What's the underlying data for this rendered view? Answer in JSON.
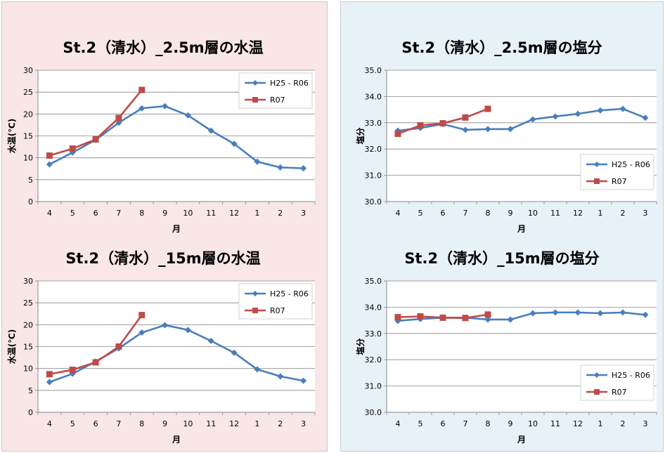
{
  "colors": {
    "series_a": "#4a7ebb",
    "series_b": "#be4b48",
    "panel_left_bg": "#f9e6e6",
    "panel_right_bg": "#e7f1f8"
  },
  "chart_data": [
    {
      "type": "line",
      "title": "St.2（清水）_2.5m層の水温",
      "xlabel": "月",
      "ylabel": "水温(℃)",
      "categories": [
        "4",
        "5",
        "6",
        "7",
        "8",
        "9",
        "10",
        "11",
        "12",
        "1",
        "2",
        "3"
      ],
      "ylim": [
        0,
        30
      ],
      "yticks": [
        "0",
        "5",
        "10",
        "15",
        "20",
        "25",
        "30"
      ],
      "grid": true,
      "legend": "top-right",
      "series": [
        {
          "name": "H25 - R06",
          "values": [
            8.5,
            11.2,
            14.1,
            18.0,
            21.3,
            21.8,
            19.7,
            16.2,
            13.2,
            9.1,
            7.8,
            7.6
          ]
        },
        {
          "name": "R07",
          "values": [
            10.5,
            12.1,
            14.2,
            19.1,
            25.5,
            null,
            null,
            null,
            null,
            null,
            null,
            null
          ]
        }
      ]
    },
    {
      "type": "line",
      "title": "St.2（清水）_2.5m層の塩分",
      "xlabel": "月",
      "ylabel": "塩分",
      "categories": [
        "4",
        "5",
        "6",
        "7",
        "8",
        "9",
        "10",
        "11",
        "12",
        "1",
        "2",
        "3"
      ],
      "ylim": [
        30.0,
        35.0
      ],
      "yticks": [
        "30.0",
        "31.0",
        "32.0",
        "33.0",
        "34.0",
        "35.0"
      ],
      "grid": true,
      "legend": "middle-right",
      "series": [
        {
          "name": "H25 - R06",
          "values": [
            32.7,
            32.8,
            32.95,
            32.73,
            32.76,
            32.76,
            33.13,
            33.24,
            33.34,
            33.47,
            33.53,
            33.19
          ]
        },
        {
          "name": "R07",
          "values": [
            32.58,
            32.9,
            32.98,
            33.2,
            33.53,
            null,
            null,
            null,
            null,
            null,
            null,
            null
          ]
        }
      ]
    },
    {
      "type": "line",
      "title": "St.2（清水）_15m層の水温",
      "xlabel": "月",
      "ylabel": "水温(℃)",
      "categories": [
        "4",
        "5",
        "6",
        "7",
        "8",
        "9",
        "10",
        "11",
        "12",
        "1",
        "2",
        "3"
      ],
      "ylim": [
        0,
        30
      ],
      "yticks": [
        "0",
        "5",
        "10",
        "15",
        "20",
        "25",
        "30"
      ],
      "grid": true,
      "legend": "top-right",
      "series": [
        {
          "name": "H25 - R06",
          "values": [
            6.9,
            8.8,
            11.6,
            14.6,
            18.2,
            19.9,
            18.8,
            16.3,
            13.6,
            9.8,
            8.2,
            7.2
          ]
        },
        {
          "name": "R07",
          "values": [
            8.7,
            9.7,
            11.4,
            15.0,
            22.2,
            null,
            null,
            null,
            null,
            null,
            null,
            null
          ]
        }
      ]
    },
    {
      "type": "line",
      "title": "St.2（清水）_15m層の塩分",
      "xlabel": "月",
      "ylabel": "塩分",
      "categories": [
        "4",
        "5",
        "6",
        "7",
        "8",
        "9",
        "10",
        "11",
        "12",
        "1",
        "2",
        "3"
      ],
      "ylim": [
        30.0,
        35.0
      ],
      "yticks": [
        "30.0",
        "31.0",
        "32.0",
        "33.0",
        "34.0",
        "35.0"
      ],
      "grid": true,
      "legend": "bottom-right",
      "series": [
        {
          "name": "H25 - R06",
          "values": [
            33.48,
            33.55,
            33.6,
            33.6,
            33.53,
            33.53,
            33.77,
            33.8,
            33.8,
            33.77,
            33.8,
            33.71
          ]
        },
        {
          "name": "R07",
          "values": [
            33.62,
            33.65,
            33.6,
            33.59,
            33.72,
            null,
            null,
            null,
            null,
            null,
            null,
            null
          ]
        }
      ]
    }
  ]
}
